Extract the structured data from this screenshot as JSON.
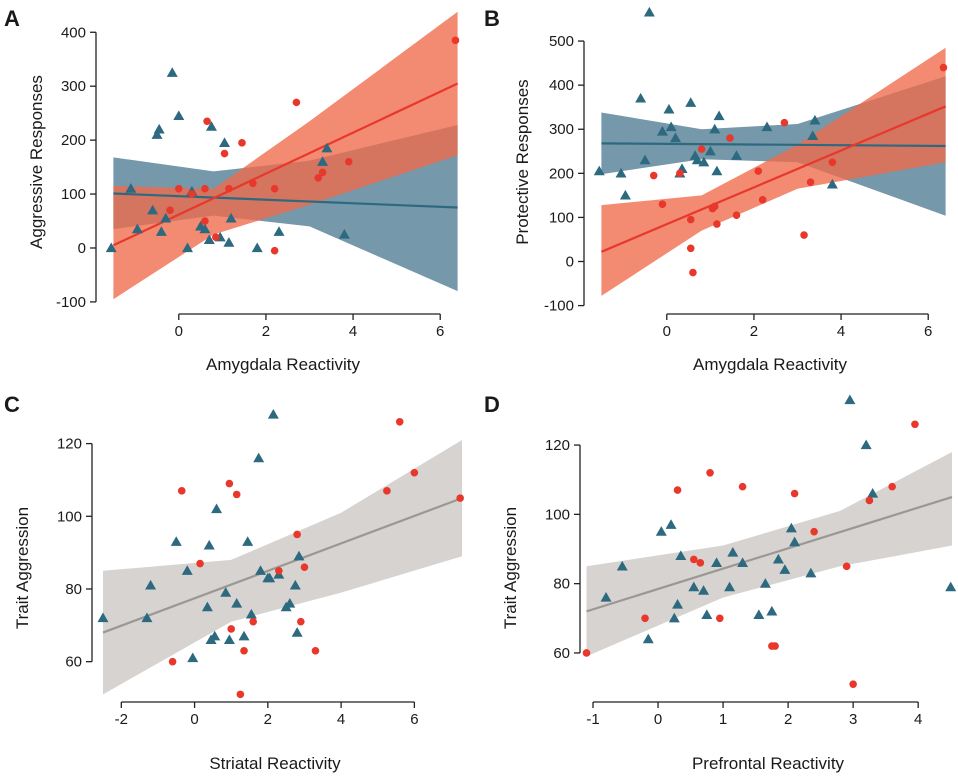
{
  "colors": {
    "red": "#e8382c",
    "red_band": "#ef6a4a",
    "teal": "#2d6a80",
    "teal_band": "#4e7b92",
    "gray_band": "#d6d3d0",
    "gray_line": "#9a9795"
  },
  "chart_data": [
    {
      "id": "A",
      "letter": "A",
      "type": "scatter",
      "xlabel": "Amygdala Reactivity",
      "ylabel": "Aggressive Responses",
      "xlim": [
        -1.9,
        6.5
      ],
      "ylim": [
        -115,
        445
      ],
      "xticks": [
        0,
        2,
        4,
        6
      ],
      "yticks": [
        -100,
        0,
        100,
        200,
        300,
        400
      ],
      "series": [
        {
          "color": "teal",
          "band_color": "teal_band",
          "marker": "triangle",
          "fit": {
            "x": [
              -1.5,
              6.4
            ],
            "y": [
              101,
              75
            ]
          },
          "band_lower": [
            35,
            60,
            40,
            -80
          ],
          "band_upper": [
            168,
            142,
            162,
            228
          ],
          "band_x": [
            -1.5,
            0.8,
            3.0,
            6.4
          ],
          "points": [
            [
              -1.55,
              0
            ],
            [
              -1.1,
              110
            ],
            [
              -0.95,
              35
            ],
            [
              -0.6,
              70
            ],
            [
              -0.5,
              210
            ],
            [
              -0.45,
              220
            ],
            [
              -0.4,
              30
            ],
            [
              -0.15,
              325
            ],
            [
              0.0,
              245
            ],
            [
              0.2,
              0
            ],
            [
              0.5,
              40
            ],
            [
              0.6,
              35
            ],
            [
              0.75,
              225
            ],
            [
              0.7,
              15
            ],
            [
              1.05,
              195
            ],
            [
              1.15,
              10
            ],
            [
              1.2,
              55
            ],
            [
              1.8,
              0
            ],
            [
              2.3,
              30
            ],
            [
              3.3,
              160
            ],
            [
              3.4,
              185
            ],
            [
              3.8,
              25
            ],
            [
              -0.3,
              55
            ],
            [
              0.3,
              105
            ],
            [
              0.95,
              20
            ]
          ]
        },
        {
          "color": "red",
          "band_color": "red_band",
          "marker": "circle",
          "fit": {
            "x": [
              -1.5,
              6.4
            ],
            "y": [
              5,
              305
            ]
          },
          "band_lower": [
            -95,
            25,
            80,
            172
          ],
          "band_upper": [
            115,
            110,
            235,
            438
          ],
          "band_x": [
            -1.5,
            0.8,
            3.0,
            6.4
          ],
          "points": [
            [
              -0.2,
              70
            ],
            [
              0.0,
              110
            ],
            [
              0.3,
              100
            ],
            [
              0.6,
              110
            ],
            [
              0.65,
              235
            ],
            [
              0.85,
              20
            ],
            [
              1.05,
              175
            ],
            [
              1.15,
              110
            ],
            [
              1.45,
              195
            ],
            [
              1.7,
              120
            ],
            [
              2.2,
              110
            ],
            [
              2.2,
              -5
            ],
            [
              2.7,
              270
            ],
            [
              3.2,
              130
            ],
            [
              3.3,
              140
            ],
            [
              3.9,
              160
            ],
            [
              6.35,
              385
            ],
            [
              0.6,
              50
            ]
          ]
        }
      ]
    },
    {
      "id": "B",
      "letter": "B",
      "type": "scatter",
      "xlabel": "Amygdala Reactivity",
      "ylabel": "Protective Responses",
      "xlim": [
        -1.9,
        6.5
      ],
      "ylim": [
        -110,
        575
      ],
      "xticks": [
        0,
        2,
        4,
        6
      ],
      "yticks": [
        -100,
        0,
        100,
        200,
        300,
        400,
        500
      ],
      "series": [
        {
          "color": "teal",
          "band_color": "teal_band",
          "marker": "triangle",
          "fit": {
            "x": [
              -1.5,
              6.4
            ],
            "y": [
              268,
              262
            ]
          },
          "band_lower": [
            198,
            232,
            225,
            104
          ],
          "band_upper": [
            338,
            300,
            312,
            420
          ],
          "band_x": [
            -1.5,
            0.8,
            3.0,
            6.4
          ],
          "points": [
            [
              -1.55,
              205
            ],
            [
              -1.05,
              200
            ],
            [
              -0.95,
              150
            ],
            [
              -0.6,
              370
            ],
            [
              -0.5,
              230
            ],
            [
              -0.4,
              565
            ],
            [
              -0.1,
              295
            ],
            [
              0.05,
              345
            ],
            [
              0.1,
              305
            ],
            [
              0.3,
              200
            ],
            [
              0.35,
              210
            ],
            [
              0.55,
              360
            ],
            [
              0.65,
              240
            ],
            [
              0.7,
              230
            ],
            [
              1.0,
              250
            ],
            [
              1.1,
              300
            ],
            [
              1.2,
              330
            ],
            [
              1.15,
              205
            ],
            [
              1.6,
              240
            ],
            [
              2.3,
              305
            ],
            [
              3.35,
              285
            ],
            [
              3.4,
              320
            ],
            [
              3.8,
              175
            ],
            [
              0.2,
              280
            ],
            [
              0.85,
              225
            ]
          ]
        },
        {
          "color": "red",
          "band_color": "red_band",
          "marker": "circle",
          "fit": {
            "x": [
              -1.5,
              6.4
            ],
            "y": [
              22,
              352
            ]
          },
          "band_lower": [
            -78,
            70,
            165,
            225
          ],
          "band_upper": [
            128,
            150,
            265,
            485
          ],
          "band_x": [
            -1.5,
            0.8,
            3.0,
            6.4
          ],
          "points": [
            [
              -0.3,
              195
            ],
            [
              -0.1,
              130
            ],
            [
              0.3,
              200
            ],
            [
              0.55,
              95
            ],
            [
              0.55,
              30
            ],
            [
              0.6,
              -25
            ],
            [
              0.8,
              255
            ],
            [
              1.1,
              125
            ],
            [
              1.15,
              85
            ],
            [
              1.45,
              280
            ],
            [
              1.6,
              105
            ],
            [
              2.1,
              205
            ],
            [
              2.2,
              140
            ],
            [
              2.7,
              315
            ],
            [
              3.15,
              60
            ],
            [
              3.3,
              180
            ],
            [
              3.8,
              225
            ],
            [
              6.35,
              440
            ],
            [
              1.05,
              120
            ]
          ]
        }
      ]
    },
    {
      "id": "C",
      "letter": "C",
      "type": "scatter",
      "xlabel": "Striatal Reactivity",
      "ylabel": "Trait Aggression",
      "xlim": [
        -2.8,
        7.3
      ],
      "ylim": [
        50,
        132
      ],
      "xticks": [
        -2,
        0,
        2,
        4,
        6
      ],
      "yticks": [
        60,
        80,
        100,
        120
      ],
      "series": [
        {
          "color": "gray_line",
          "band_color": "gray_band",
          "marker": "none",
          "draw_first": true,
          "fit": {
            "x": [
              -2.5,
              7.3
            ],
            "y": [
              68,
              105
            ]
          },
          "band_lower": [
            51,
            71,
            79,
            89
          ],
          "band_upper": [
            85,
            88,
            101,
            121
          ],
          "band_x": [
            -2.5,
            1.0,
            4.0,
            7.3
          ],
          "points": []
        },
        {
          "color": "teal",
          "band_color": "",
          "marker": "triangle",
          "fit": null,
          "points": [
            [
              -2.5,
              72
            ],
            [
              -1.3,
              72
            ],
            [
              -1.2,
              81
            ],
            [
              -0.5,
              93
            ],
            [
              -0.2,
              85
            ],
            [
              -0.05,
              61
            ],
            [
              0.35,
              75
            ],
            [
              0.4,
              92
            ],
            [
              0.45,
              66
            ],
            [
              0.55,
              67
            ],
            [
              0.6,
              102
            ],
            [
              0.85,
              79
            ],
            [
              0.95,
              66
            ],
            [
              1.15,
              76
            ],
            [
              1.35,
              67
            ],
            [
              1.45,
              93
            ],
            [
              1.55,
              73
            ],
            [
              1.75,
              116
            ],
            [
              1.8,
              85
            ],
            [
              2.0,
              83
            ],
            [
              2.05,
              83
            ],
            [
              2.15,
              128
            ],
            [
              2.3,
              84
            ],
            [
              2.5,
              75
            ],
            [
              2.6,
              76
            ],
            [
              2.75,
              81
            ],
            [
              2.8,
              68
            ],
            [
              2.85,
              89
            ]
          ]
        },
        {
          "color": "red",
          "band_color": "",
          "marker": "circle",
          "fit": null,
          "points": [
            [
              -0.6,
              60
            ],
            [
              -0.35,
              107
            ],
            [
              0.15,
              87
            ],
            [
              0.95,
              109
            ],
            [
              1.0,
              69
            ],
            [
              1.15,
              106
            ],
            [
              1.25,
              51
            ],
            [
              1.35,
              63
            ],
            [
              1.6,
              71
            ],
            [
              2.3,
              85
            ],
            [
              2.8,
              95
            ],
            [
              2.9,
              71
            ],
            [
              3.0,
              86
            ],
            [
              3.3,
              63
            ],
            [
              5.25,
              107
            ],
            [
              5.6,
              126
            ],
            [
              6.0,
              112
            ],
            [
              7.25,
              105
            ]
          ]
        }
      ]
    },
    {
      "id": "D",
      "letter": "D",
      "type": "scatter",
      "xlabel": "Prefrontal Reactivity",
      "ylabel": "Trait Aggression",
      "xlim": [
        -1.2,
        4.52
      ],
      "ylim": [
        47,
        133
      ],
      "xticks": [
        -1,
        0,
        1,
        2,
        3,
        4
      ],
      "yticks": [
        60,
        80,
        100,
        120
      ],
      "series": [
        {
          "color": "gray_line",
          "band_color": "gray_band",
          "marker": "none",
          "draw_first": true,
          "fit": {
            "x": [
              -1.1,
              4.52
            ],
            "y": [
              72,
              105
            ]
          },
          "band_lower": [
            59,
            76,
            85,
            91
          ],
          "band_upper": [
            85,
            91,
            101,
            118
          ],
          "band_x": [
            -1.1,
            1.0,
            2.8,
            4.52
          ],
          "points": []
        },
        {
          "color": "teal",
          "band_color": "",
          "marker": "triangle",
          "fit": null,
          "points": [
            [
              -0.8,
              76
            ],
            [
              -0.55,
              85
            ],
            [
              -0.15,
              64
            ],
            [
              0.05,
              95
            ],
            [
              0.2,
              97
            ],
            [
              0.25,
              70
            ],
            [
              0.3,
              74
            ],
            [
              0.35,
              88
            ],
            [
              0.55,
              79
            ],
            [
              0.7,
              78
            ],
            [
              0.75,
              71
            ],
            [
              0.9,
              86
            ],
            [
              1.1,
              79
            ],
            [
              1.15,
              89
            ],
            [
              1.3,
              86
            ],
            [
              1.55,
              71
            ],
            [
              1.65,
              80
            ],
            [
              1.75,
              72
            ],
            [
              1.85,
              87
            ],
            [
              1.95,
              84
            ],
            [
              2.05,
              96
            ],
            [
              2.1,
              92
            ],
            [
              2.35,
              83
            ],
            [
              2.95,
              133
            ],
            [
              3.2,
              120
            ],
            [
              3.3,
              106
            ],
            [
              4.5,
              79
            ]
          ]
        },
        {
          "color": "red",
          "band_color": "",
          "marker": "circle",
          "fit": null,
          "points": [
            [
              -1.1,
              60
            ],
            [
              -0.2,
              70
            ],
            [
              0.3,
              107
            ],
            [
              0.55,
              87
            ],
            [
              0.65,
              86
            ],
            [
              0.8,
              112
            ],
            [
              0.95,
              70
            ],
            [
              1.3,
              108
            ],
            [
              1.75,
              62
            ],
            [
              1.8,
              62
            ],
            [
              2.1,
              106
            ],
            [
              2.4,
              95
            ],
            [
              2.9,
              85
            ],
            [
              3.0,
              51
            ],
            [
              3.25,
              104
            ],
            [
              3.6,
              108
            ],
            [
              3.95,
              126
            ]
          ]
        }
      ]
    }
  ]
}
